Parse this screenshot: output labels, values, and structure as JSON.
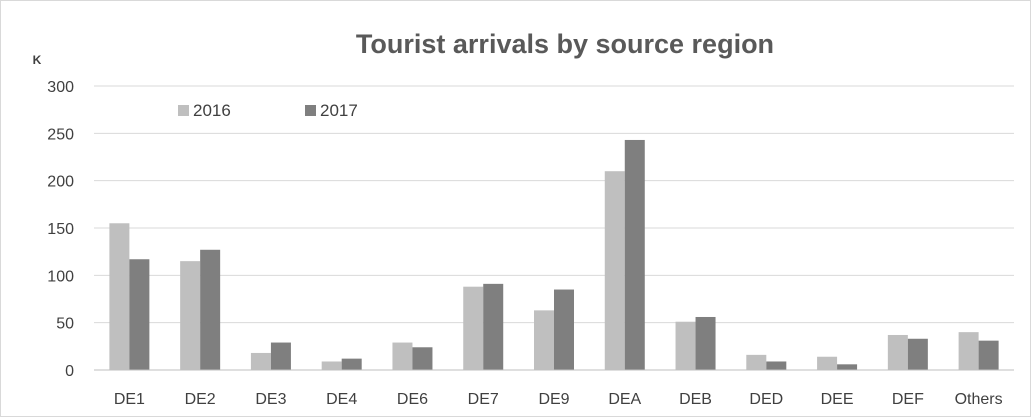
{
  "chart_data": {
    "type": "bar",
    "title": "Tourist arrivals by source region",
    "unit_label": "K",
    "xlabel": "",
    "ylabel": "",
    "ylim": [
      0,
      300
    ],
    "yticks": [
      0,
      50,
      100,
      150,
      200,
      250,
      300
    ],
    "grid": true,
    "legend_position": "top-left",
    "categories": [
      "DE1",
      "DE2",
      "DE3",
      "DE4",
      "DE6",
      "DE7",
      "DE9",
      "DEA",
      "DEB",
      "DED",
      "DEE",
      "DEF",
      "Others"
    ],
    "series": [
      {
        "name": "2016",
        "color": "#bfbfbf",
        "values": [
          155,
          115,
          18,
          9,
          29,
          88,
          63,
          210,
          51,
          16,
          14,
          37,
          40
        ]
      },
      {
        "name": "2017",
        "color": "#7f7f7f",
        "values": [
          117,
          127,
          29,
          12,
          24,
          91,
          85,
          243,
          56,
          9,
          6,
          33,
          31
        ]
      }
    ]
  }
}
